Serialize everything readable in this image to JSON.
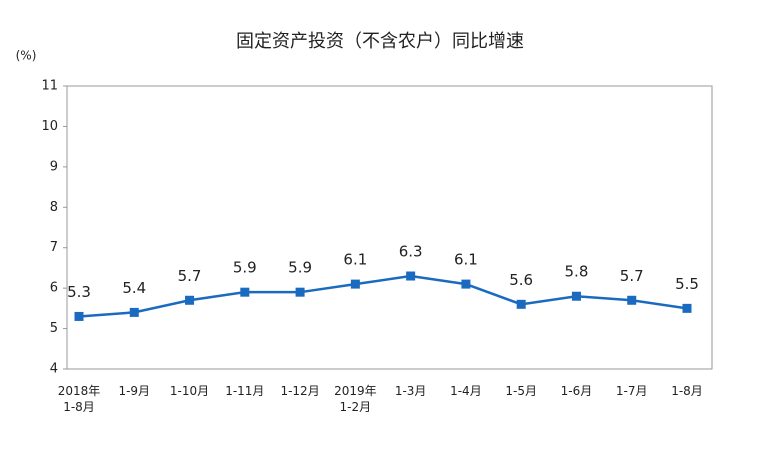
{
  "chart_data": {
    "type": "line",
    "title": "固定资产投资（不含农户）同比增速",
    "y_unit": "(%)",
    "categories": [
      "2018年\n1-8月",
      "1-9月",
      "1-10月",
      "1-11月",
      "1-12月",
      "2019年\n1-2月",
      "1-3月",
      "1-4月",
      "1-5月",
      "1-6月",
      "1-7月",
      "1-8月"
    ],
    "values": [
      5.3,
      5.4,
      5.7,
      5.9,
      5.9,
      6.1,
      6.3,
      6.1,
      5.6,
      5.8,
      5.7,
      5.5
    ],
    "color": "#1a6bbf",
    "ylim": [
      4,
      11
    ],
    "yticks": [
      4,
      5,
      6,
      7,
      8,
      9,
      10,
      11
    ],
    "grid": false
  }
}
